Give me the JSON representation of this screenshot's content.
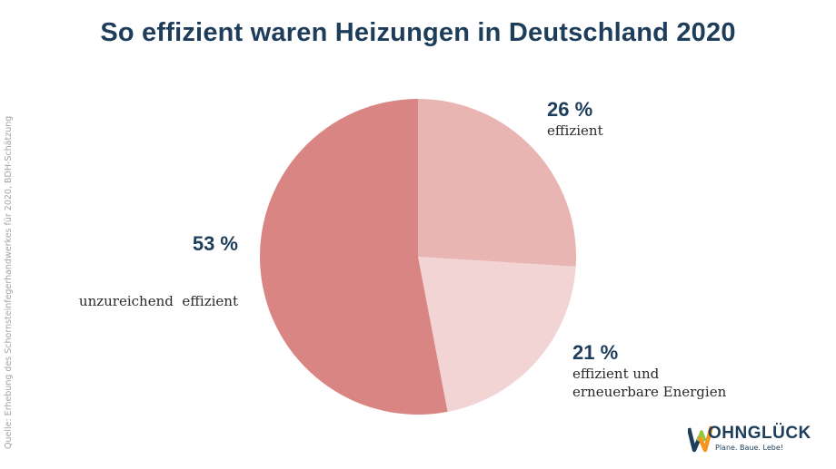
{
  "source_note": "Quelle: Erhebung des Schornsteinfegerhandwerkes für 2020, BDH-Schätzung",
  "logo": {
    "word": "OHNGLÜCK",
    "tagline": "Plane. Baue. Lebe!",
    "colors": {
      "navy": "#1d3d5a",
      "green": "#8dc63f",
      "orange": "#f7941d"
    }
  },
  "chart_data": {
    "type": "pie",
    "title": "So effizient waren Heizungen in Deutschland 2020",
    "slices": [
      {
        "label_lines": [
          "effizient"
        ],
        "value": 26,
        "value_label": "26 %",
        "color": "#e8b5b2"
      },
      {
        "label_lines": [
          "effizient und",
          "erneuerbare Energien"
        ],
        "value": 21,
        "value_label": "21 %",
        "color": "#f2d4d5"
      },
      {
        "label_lines": [
          "unzureichend  effizient"
        ],
        "value": 53,
        "value_label": "53 %",
        "color": "#d98583"
      }
    ],
    "start_angle_deg": 0,
    "direction": "clockwise"
  }
}
